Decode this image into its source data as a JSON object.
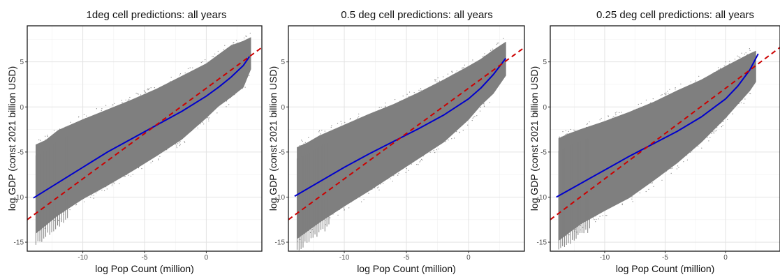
{
  "chart_data": [
    {
      "type": "scatter",
      "title": "1deg cell predictions: all years",
      "xlabel": "log Pop Count (million)",
      "ylabel": "log GDP (const 2021 billion USD)",
      "xlim": [
        -14.5,
        4.5
      ],
      "ylim": [
        -16,
        9
      ],
      "xticks": [
        -10,
        -5,
        0
      ],
      "yticks": [
        -15,
        -10,
        -5,
        0,
        5
      ],
      "grid": true,
      "point_color": "#7f7f7f",
      "cloud_upper": [
        [
          -13.8,
          -4.2
        ],
        [
          -13,
          -3.7
        ],
        [
          -12,
          -2.6
        ],
        [
          -10,
          -1.4
        ],
        [
          -8,
          -0.3
        ],
        [
          -6,
          0.8
        ],
        [
          -4,
          2.0
        ],
        [
          -2,
          3.4
        ],
        [
          0,
          4.8
        ],
        [
          1,
          5.8
        ],
        [
          2,
          6.8
        ],
        [
          3,
          7.3
        ],
        [
          3.6,
          7.7
        ]
      ],
      "cloud_lower": [
        [
          3.6,
          4.2
        ],
        [
          3,
          2.2
        ],
        [
          2,
          1.1
        ],
        [
          1,
          0.1
        ],
        [
          0,
          -1.2
        ],
        [
          -2,
          -3.6
        ],
        [
          -4,
          -5.4
        ],
        [
          -6,
          -7.1
        ],
        [
          -8,
          -8.7
        ],
        [
          -10,
          -10.2
        ],
        [
          -12,
          -12.0
        ],
        [
          -13.8,
          -14.0
        ]
      ],
      "fit_line": {
        "color": "#0000cc",
        "x": [
          -14,
          -12,
          -10,
          -8,
          -6,
          -4,
          -2,
          0,
          1,
          2,
          3,
          3.5
        ],
        "y": [
          -10.1,
          -8.4,
          -6.7,
          -5.0,
          -3.5,
          -2.0,
          -0.5,
          1.2,
          2.2,
          3.3,
          4.6,
          5.6
        ]
      },
      "reference_line": {
        "color": "#cc0000",
        "style": "dashed",
        "x": [
          -14.5,
          4.5
        ],
        "y": [
          -12.5,
          6.6
        ]
      }
    },
    {
      "type": "scatter",
      "title": "0.5 deg cell predictions: all years",
      "xlabel": "log Pop Count (million)",
      "ylabel": "log GDP (const 2021 billion USD)",
      "xlim": [
        -14.5,
        4.5
      ],
      "ylim": [
        -16,
        9
      ],
      "xticks": [
        -10,
        -5,
        0
      ],
      "yticks": [
        -15,
        -10,
        -5,
        0,
        5
      ],
      "grid": true,
      "point_color": "#7f7f7f",
      "cloud_upper": [
        [
          -13.8,
          -4.5
        ],
        [
          -13,
          -4.0
        ],
        [
          -12,
          -3.2
        ],
        [
          -10,
          -2.0
        ],
        [
          -8,
          -0.8
        ],
        [
          -6,
          0.3
        ],
        [
          -4,
          1.6
        ],
        [
          -2,
          3.0
        ],
        [
          0,
          4.5
        ],
        [
          1,
          5.3
        ],
        [
          2,
          6.3
        ],
        [
          3,
          7.2
        ]
      ],
      "cloud_lower": [
        [
          3,
          3.5
        ],
        [
          2,
          1.5
        ],
        [
          1,
          0.2
        ],
        [
          0,
          -1.4
        ],
        [
          -2,
          -3.9
        ],
        [
          -4,
          -5.7
        ],
        [
          -6,
          -7.5
        ],
        [
          -8,
          -9.3
        ],
        [
          -10,
          -11.0
        ],
        [
          -12,
          -12.8
        ],
        [
          -13.8,
          -14.6
        ]
      ],
      "fit_line": {
        "color": "#0000cc",
        "x": [
          -14,
          -12,
          -10,
          -8,
          -6,
          -4,
          -2,
          0,
          1,
          2,
          3
        ],
        "y": [
          -9.9,
          -8.3,
          -6.7,
          -5.2,
          -3.8,
          -2.4,
          -0.9,
          0.9,
          2.1,
          3.6,
          5.4
        ]
      },
      "reference_line": {
        "color": "#cc0000",
        "style": "dashed",
        "x": [
          -14.5,
          4.5
        ],
        "y": [
          -12.5,
          6.6
        ]
      }
    },
    {
      "type": "scatter",
      "title": "0.25 deg cell predictions: all years",
      "xlabel": "log Pop Count (million)",
      "ylabel": "log GDP (const 2021 billion USD)",
      "xlim": [
        -14.5,
        4.5
      ],
      "ylim": [
        -16,
        9
      ],
      "xticks": [
        -10,
        -5,
        0
      ],
      "yticks": [
        -15,
        -10,
        -5,
        0,
        5
      ],
      "grid": true,
      "point_color": "#7f7f7f",
      "cloud_upper": [
        [
          -13.8,
          -3.5
        ],
        [
          -13,
          -3.0
        ],
        [
          -12,
          -2.5
        ],
        [
          -10,
          -1.6
        ],
        [
          -8,
          -0.6
        ],
        [
          -6,
          0.5
        ],
        [
          -4,
          1.8
        ],
        [
          -2,
          3.0
        ],
        [
          0,
          4.5
        ],
        [
          1,
          5.2
        ],
        [
          2,
          5.9
        ],
        [
          2.5,
          6.2
        ]
      ],
      "cloud_lower": [
        [
          2.5,
          2.8
        ],
        [
          2,
          1.8
        ],
        [
          1,
          0.3
        ],
        [
          0,
          -1.2
        ],
        [
          -2,
          -3.9
        ],
        [
          -4,
          -6.2
        ],
        [
          -6,
          -8.2
        ],
        [
          -8,
          -10.1
        ],
        [
          -10,
          -11.5
        ],
        [
          -12,
          -13.0
        ],
        [
          -13.8,
          -14.8
        ]
      ],
      "fit_line": {
        "color": "#0000cc",
        "x": [
          -14,
          -12,
          -10,
          -8,
          -6,
          -4,
          -2,
          0,
          1,
          2,
          2.7
        ],
        "y": [
          -10.0,
          -8.5,
          -7.0,
          -5.5,
          -4.1,
          -2.7,
          -1.1,
          0.9,
          2.3,
          4.1,
          5.9
        ]
      },
      "reference_line": {
        "color": "#cc0000",
        "style": "dashed",
        "x": [
          -14.5,
          4.5
        ],
        "y": [
          -12.5,
          6.6
        ]
      }
    }
  ]
}
